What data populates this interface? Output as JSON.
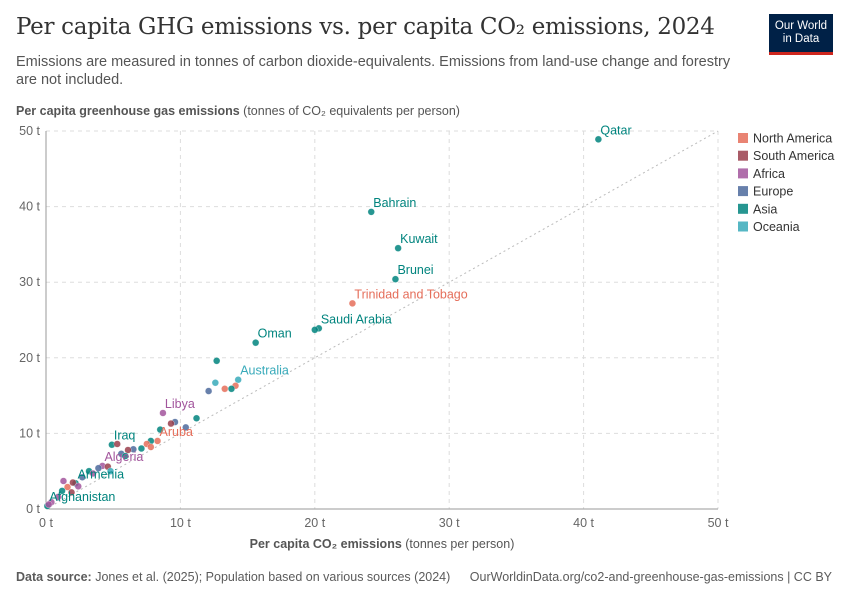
{
  "header": {
    "title": "Per capita GHG emissions vs. per capita CO₂ emissions, 2024",
    "subtitle": "Emissions are measured in tonnes of carbon dioxide-equivalents. Emissions from land-use change and forestry are not included.",
    "logo": "Our World in Data"
  },
  "footer": {
    "source_label": "Data source:",
    "source": " Jones et al. (2025); Population based on various sources (2024)",
    "url": "OurWorldinData.org/co2-and-greenhouse-gas-emissions | CC BY"
  },
  "chart_data": {
    "type": "scatter",
    "xlabel_bold": "Per capita CO₂ emissions",
    "xlabel_unit": " (tonnes per person)",
    "ylabel_bold": "Per capita greenhouse gas emissions",
    "ylabel_unit": " (tonnes of CO₂ equivalents per person)",
    "xlim": [
      0,
      50
    ],
    "ylim": [
      0,
      50
    ],
    "xticks": [
      "0 t",
      "10 t",
      "20 t",
      "30 t",
      "40 t",
      "50 t"
    ],
    "yticks": [
      "0 t",
      "10 t",
      "20 t",
      "30 t",
      "40 t",
      "50 t"
    ],
    "grid": true,
    "reference_line": "y = x",
    "legend_position": "right",
    "legend": [
      {
        "name": "North America",
        "color": "#e56e5a"
      },
      {
        "name": "South America",
        "color": "#9a3e4c"
      },
      {
        "name": "Africa",
        "color": "#a2559c"
      },
      {
        "name": "Europe",
        "color": "#4c6a9c"
      },
      {
        "name": "Asia",
        "color": "#00847e"
      },
      {
        "name": "Oceania",
        "color": "#38aaba"
      }
    ],
    "points": [
      {
        "x": 41.1,
        "y": 48.9,
        "region": "Asia",
        "label": "Qatar"
      },
      {
        "x": 24.2,
        "y": 39.3,
        "region": "Asia",
        "label": "Bahrain"
      },
      {
        "x": 26.2,
        "y": 34.5,
        "region": "Asia",
        "label": "Kuwait"
      },
      {
        "x": 26.0,
        "y": 30.4,
        "region": "Asia",
        "label": "Brunei"
      },
      {
        "x": 22.8,
        "y": 27.2,
        "region": "North America",
        "label": "Trinidad and Tobago"
      },
      {
        "x": 20.3,
        "y": 23.9,
        "region": "Asia",
        "label": "Saudi Arabia"
      },
      {
        "x": 20.0,
        "y": 23.7,
        "region": "Asia"
      },
      {
        "x": 15.6,
        "y": 22.0,
        "region": "Asia",
        "label": "Oman"
      },
      {
        "x": 14.3,
        "y": 17.1,
        "region": "Oceania",
        "label": "Australia"
      },
      {
        "x": 8.7,
        "y": 12.7,
        "region": "Africa",
        "label": "Libya"
      },
      {
        "x": 4.9,
        "y": 8.5,
        "region": "Asia",
        "label": "Iraq"
      },
      {
        "x": 8.3,
        "y": 9.0,
        "region": "North America",
        "label": "Aruba"
      },
      {
        "x": 4.2,
        "y": 5.7,
        "region": "Africa",
        "label": "Algeria"
      },
      {
        "x": 2.2,
        "y": 3.4,
        "region": "Asia",
        "label": "Armenia"
      },
      {
        "x": 0.1,
        "y": 0.4,
        "region": "Asia",
        "label": "Afghanistan"
      },
      {
        "x": 12.7,
        "y": 19.6,
        "region": "Asia"
      },
      {
        "x": 12.6,
        "y": 16.7,
        "region": "Oceania"
      },
      {
        "x": 12.1,
        "y": 15.6,
        "region": "Europe"
      },
      {
        "x": 13.3,
        "y": 15.9,
        "region": "North America"
      },
      {
        "x": 14.1,
        "y": 16.3,
        "region": "North America"
      },
      {
        "x": 13.8,
        "y": 15.9,
        "region": "Asia"
      },
      {
        "x": 11.2,
        "y": 12.0,
        "region": "Asia"
      },
      {
        "x": 10.4,
        "y": 10.8,
        "region": "Europe"
      },
      {
        "x": 9.6,
        "y": 11.5,
        "region": "Europe"
      },
      {
        "x": 9.3,
        "y": 11.3,
        "region": "South America"
      },
      {
        "x": 8.5,
        "y": 10.5,
        "region": "Asia"
      },
      {
        "x": 7.8,
        "y": 9.0,
        "region": "Asia"
      },
      {
        "x": 7.5,
        "y": 8.6,
        "region": "North America"
      },
      {
        "x": 7.8,
        "y": 8.2,
        "region": "North America"
      },
      {
        "x": 7.1,
        "y": 8.0,
        "region": "Asia"
      },
      {
        "x": 6.5,
        "y": 7.9,
        "region": "Europe"
      },
      {
        "x": 6.1,
        "y": 7.8,
        "region": "South America"
      },
      {
        "x": 5.6,
        "y": 7.3,
        "region": "Europe"
      },
      {
        "x": 5.9,
        "y": 7.0,
        "region": "Asia"
      },
      {
        "x": 5.3,
        "y": 8.6,
        "region": "South America"
      },
      {
        "x": 4.6,
        "y": 5.6,
        "region": "South America"
      },
      {
        "x": 3.9,
        "y": 5.4,
        "region": "Europe"
      },
      {
        "x": 4.8,
        "y": 5.0,
        "region": "Oceania"
      },
      {
        "x": 3.2,
        "y": 5.0,
        "region": "Asia"
      },
      {
        "x": 3.5,
        "y": 4.7,
        "region": "Africa"
      },
      {
        "x": 2.7,
        "y": 4.2,
        "region": "Europe"
      },
      {
        "x": 1.3,
        "y": 3.7,
        "region": "Africa"
      },
      {
        "x": 2.0,
        "y": 3.5,
        "region": "South America"
      },
      {
        "x": 1.6,
        "y": 2.9,
        "region": "North America"
      },
      {
        "x": 2.4,
        "y": 3.0,
        "region": "Africa"
      },
      {
        "x": 1.2,
        "y": 2.4,
        "region": "Asia"
      },
      {
        "x": 1.9,
        "y": 2.2,
        "region": "South America"
      },
      {
        "x": 0.9,
        "y": 1.6,
        "region": "Africa"
      },
      {
        "x": 0.4,
        "y": 0.9,
        "region": "Africa"
      },
      {
        "x": 0.2,
        "y": 0.6,
        "region": "Africa"
      }
    ]
  }
}
